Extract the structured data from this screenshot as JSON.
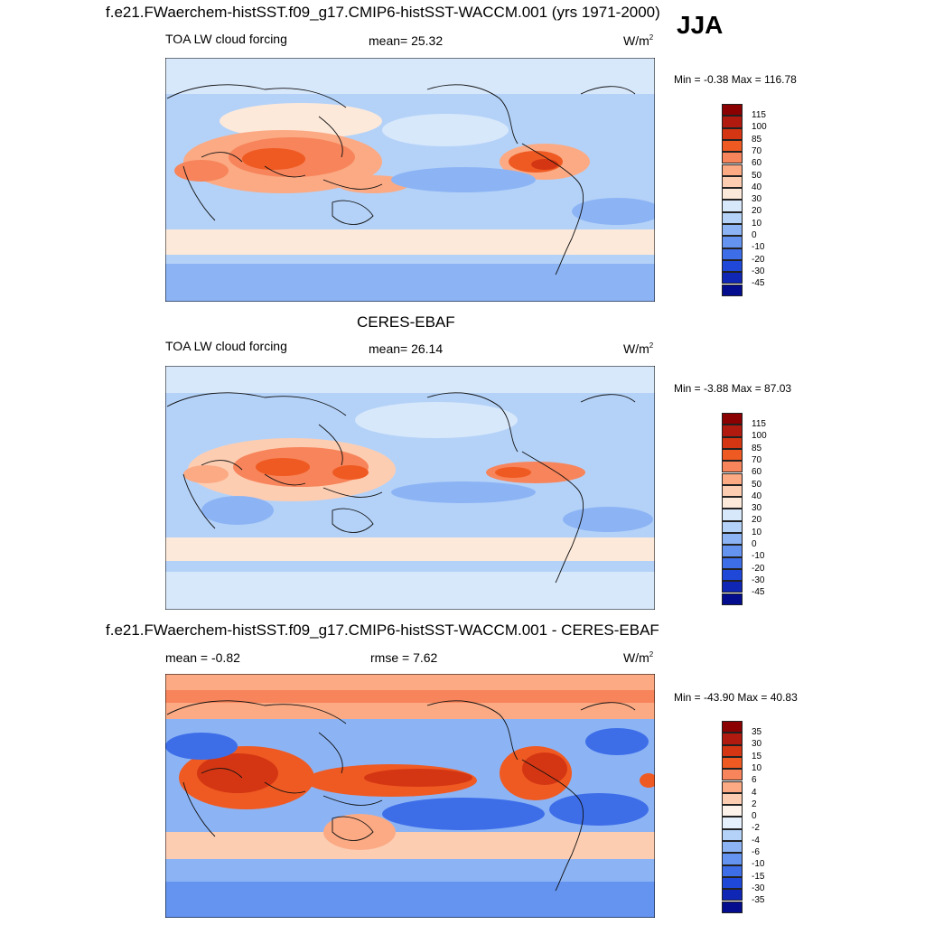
{
  "season": "JJA",
  "panels": [
    {
      "title": "f.e21.FWaerchem-histSST.f09_g17.CMIP6-histSST-WACCM.001 (yrs 1971-2000)",
      "left_label": "TOA LW cloud forcing",
      "stat": "mean=  25.32",
      "units": "W/m",
      "units_sup": "2",
      "minmax": "Min =  -0.38 Max = 116.78",
      "colorbar": {
        "labels": [
          "115",
          "100",
          "85",
          "70",
          "60",
          "50",
          "40",
          "30",
          "20",
          "10",
          "0",
          "-10",
          "-20",
          "-30",
          "-45"
        ],
        "colors": [
          "#8b0000",
          "#b11a0f",
          "#d43613",
          "#ef5a22",
          "#f7845a",
          "#fbaa84",
          "#fdcdb2",
          "#fde9da",
          "#d8e8fb",
          "#b4d2f8",
          "#8cb4f5",
          "#6494f0",
          "#3d6ee8",
          "#1f48d9",
          "#1027b6",
          "#040d8d"
        ]
      }
    },
    {
      "title": "CERES-EBAF",
      "left_label": "TOA LW cloud forcing",
      "stat": "mean=  26.14",
      "units": "W/m",
      "units_sup": "2",
      "minmax": "Min =  -3.88 Max =  87.03",
      "colorbar": {
        "labels": [
          "115",
          "100",
          "85",
          "70",
          "60",
          "50",
          "40",
          "30",
          "20",
          "10",
          "0",
          "-10",
          "-20",
          "-30",
          "-45"
        ],
        "colors": [
          "#8b0000",
          "#b11a0f",
          "#d43613",
          "#ef5a22",
          "#f7845a",
          "#fbaa84",
          "#fdcdb2",
          "#fde9da",
          "#d8e8fb",
          "#b4d2f8",
          "#8cb4f5",
          "#6494f0",
          "#3d6ee8",
          "#1f48d9",
          "#1027b6",
          "#040d8d"
        ]
      }
    },
    {
      "title": "f.e21.FWaerchem-histSST.f09_g17.CMIP6-histSST-WACCM.001 - CERES-EBAF",
      "left_label": "mean =  -0.82",
      "stat": "rmse =   7.62",
      "units": "W/m",
      "units_sup": "2",
      "minmax": "Min = -43.90 Max =  40.83",
      "colorbar": {
        "labels": [
          "35",
          "30",
          "15",
          "10",
          "6",
          "4",
          "2",
          "0",
          "-2",
          "-4",
          "-6",
          "-10",
          "-15",
          "-30",
          "-35"
        ],
        "colors": [
          "#8b0000",
          "#b11a0f",
          "#d43613",
          "#ef5a22",
          "#f7845a",
          "#fbaa84",
          "#fdcdb2",
          "#fef3ea",
          "#e6effc",
          "#b4d2f8",
          "#8cb4f5",
          "#6494f0",
          "#3d6ee8",
          "#1f48d9",
          "#1027b6",
          "#040d8d"
        ]
      }
    }
  ]
}
